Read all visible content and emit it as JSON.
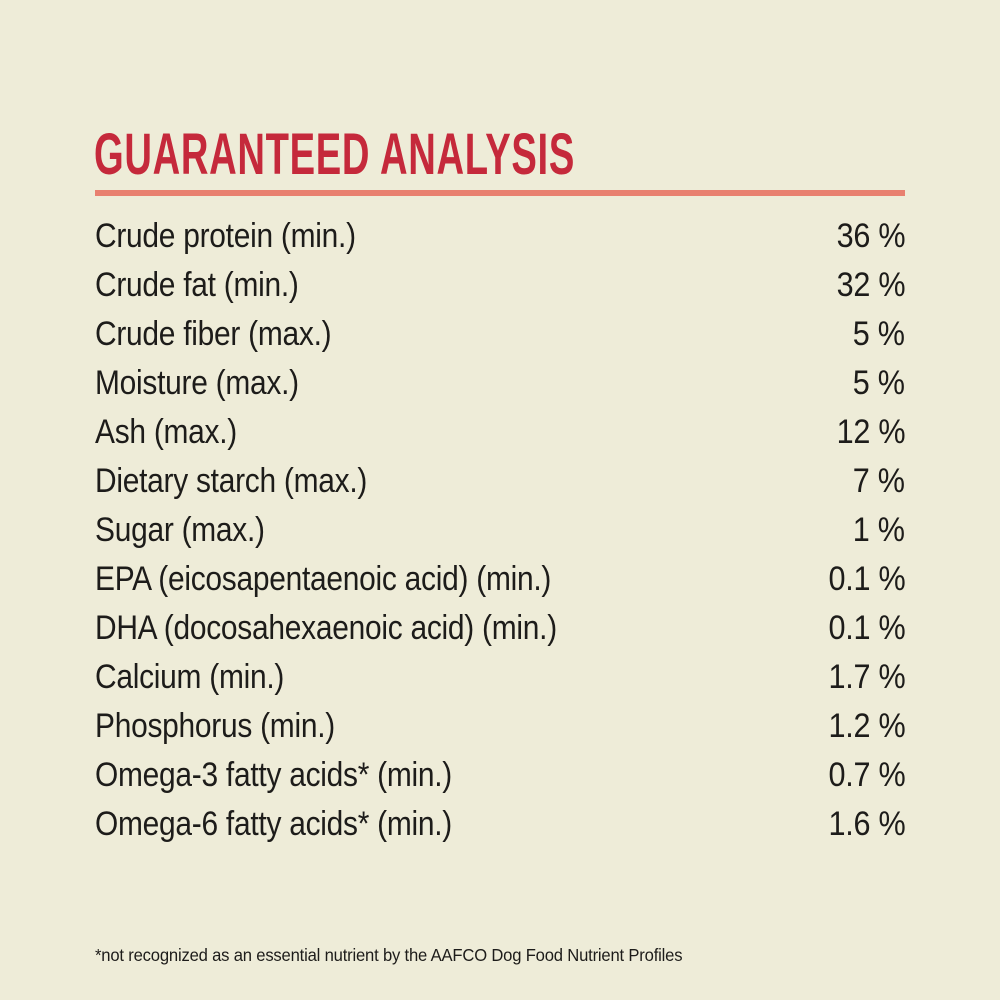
{
  "page": {
    "background": "#eeecd8",
    "text_color": "#1d1c1a"
  },
  "header": {
    "title": "GUARANTEED ANALYSIS",
    "title_color": "#c5293b",
    "divider_color": "#e8806f"
  },
  "table": {
    "rows": [
      {
        "label": "Crude protein (min.)",
        "value": "36 %"
      },
      {
        "label": "Crude fat (min.)",
        "value": "32 %"
      },
      {
        "label": "Crude fiber (max.)",
        "value": "5 %"
      },
      {
        "label": "Moisture (max.)",
        "value": "5 %"
      },
      {
        "label": "Ash (max.)",
        "value": "12 %"
      },
      {
        "label": "Dietary starch (max.)",
        "value": "7 %"
      },
      {
        "label": "Sugar (max.)",
        "value": "1 %"
      },
      {
        "label": "EPA (eicosapentaenoic acid) (min.)",
        "value": "0.1 %"
      },
      {
        "label": "DHA (docosahexaenoic acid) (min.)",
        "value": "0.1 %"
      },
      {
        "label": "Calcium (min.)",
        "value": "1.7 %"
      },
      {
        "label": "Phosphorus (min.)",
        "value": "1.2 %"
      },
      {
        "label": "Omega-3 fatty acids* (min.)",
        "value": "0.7 %"
      },
      {
        "label": "Omega-6 fatty acids* (min.)",
        "value": "1.6 %"
      }
    ]
  },
  "footnote": {
    "text": "*not recognized as an essential nutrient by the AAFCO Dog Food Nutrient Profiles"
  }
}
